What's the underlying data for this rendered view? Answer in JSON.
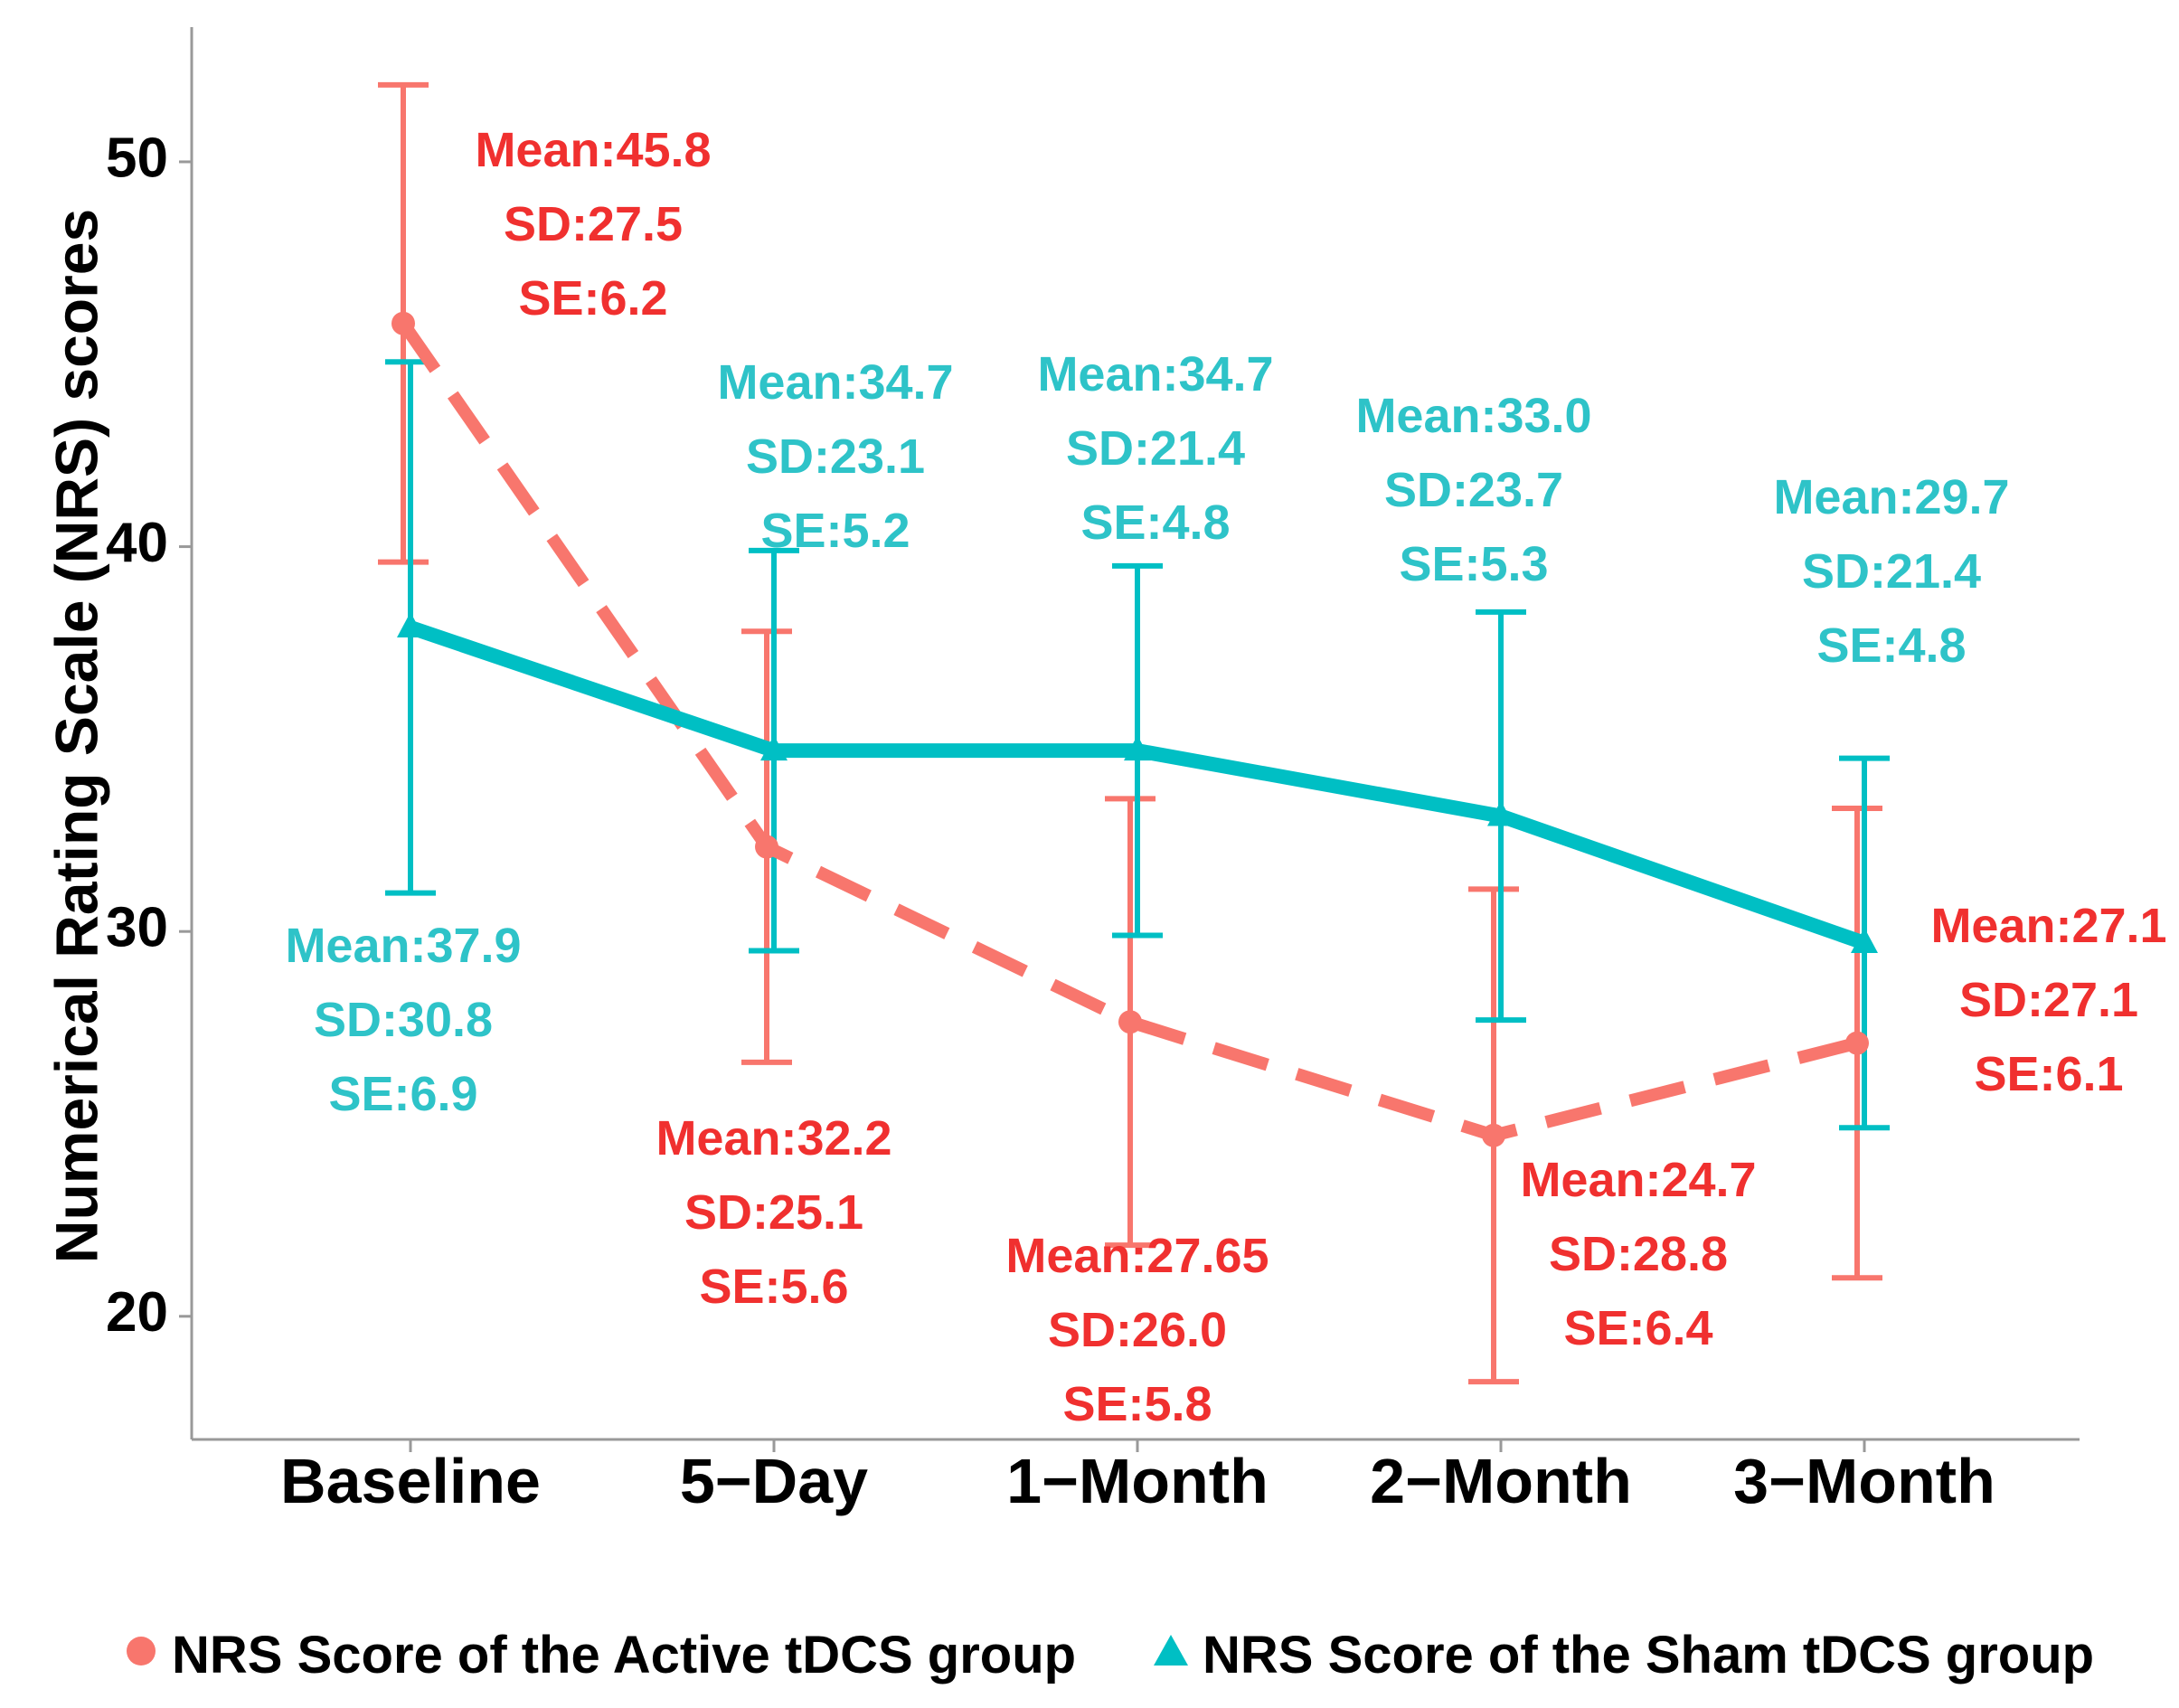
{
  "chart_data": {
    "type": "line",
    "title": "",
    "xlabel": "",
    "ylabel": "Numerical Rating Scale (NRS) scores",
    "categories": [
      "Baseline",
      "5−Day",
      "1−Month",
      "2−Month",
      "3−Month"
    ],
    "yticks": [
      20,
      30,
      40,
      50
    ],
    "ytick_labels": [
      "20",
      "30",
      "40",
      "50"
    ],
    "ylim": [
      16.8,
      53.5
    ],
    "grid": false,
    "legend_position": "bottom",
    "series": [
      {
        "name": "NRS Score of the Active tDCS group",
        "color": "#F8766D",
        "label_color": "#F0302F",
        "marker": "circle",
        "line_style": "dashed",
        "values": [
          45.8,
          32.2,
          27.65,
          24.7,
          27.1
        ],
        "error_low": [
          39.6,
          26.6,
          21.85,
          18.3,
          21.0
        ],
        "error_high": [
          52.0,
          37.8,
          33.45,
          31.1,
          33.2
        ],
        "annotations": [
          {
            "mean": "Mean:45.8",
            "sd": "SD:27.5",
            "se": "SE:6.2"
          },
          {
            "mean": "Mean:32.2",
            "sd": "SD:25.1",
            "se": "SE:5.6"
          },
          {
            "mean": "Mean:27.65",
            "sd": "SD:26.0",
            "se": "SE:5.8"
          },
          {
            "mean": "Mean:24.7",
            "sd": "SD:28.8",
            "se": "SE:6.4"
          },
          {
            "mean": "Mean:27.1",
            "sd": "SD:27.1",
            "se": "SE:6.1"
          }
        ]
      },
      {
        "name": "NRS Score of the Sham tDCS group",
        "color": "#00BFC4",
        "label_color": "#2EC3C8",
        "marker": "triangle",
        "line_style": "solid",
        "values": [
          37.9,
          34.7,
          34.7,
          33.0,
          29.7
        ],
        "error_low": [
          31.0,
          29.5,
          29.9,
          27.7,
          24.9
        ],
        "error_high": [
          44.8,
          39.9,
          39.5,
          38.3,
          34.5
        ],
        "annotations": [
          {
            "mean": "Mean:37.9",
            "sd": "SD:30.8",
            "se": "SE:6.9"
          },
          {
            "mean": "Mean:34.7",
            "sd": "SD:23.1",
            "se": "SE:5.2"
          },
          {
            "mean": "Mean:34.7",
            "sd": "SD:21.4",
            "se": "SE:4.8"
          },
          {
            "mean": "Mean:33.0",
            "sd": "SD:23.7",
            "se": "SE:5.3"
          },
          {
            "mean": "Mean:29.7",
            "sd": "SD:21.4",
            "se": "SE:4.8"
          }
        ]
      }
    ]
  }
}
